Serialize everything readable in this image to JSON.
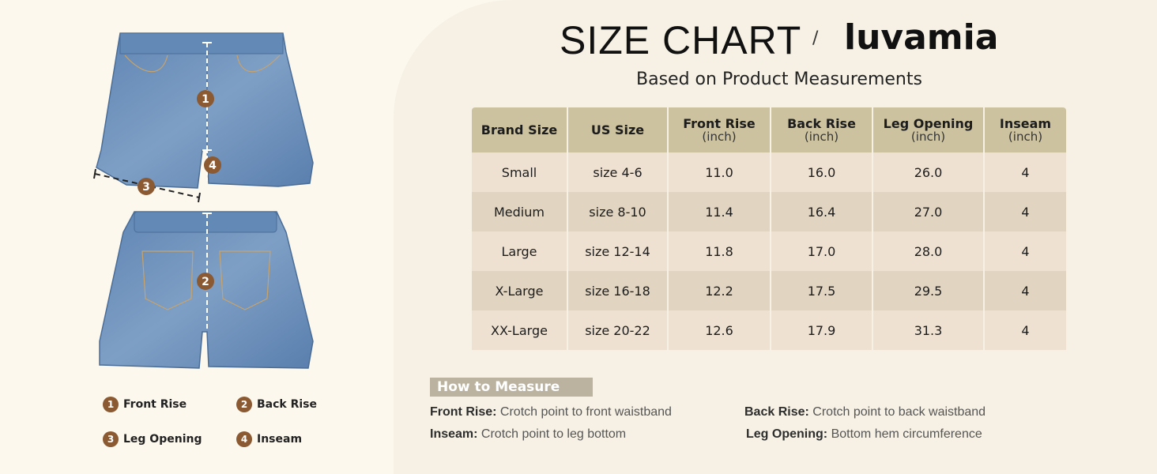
{
  "header": {
    "title": "SIZE CHART",
    "separator": "/",
    "brand": "luvamia",
    "subtitle": "Based on Product Measurements"
  },
  "table": {
    "columns": [
      {
        "label": "Brand Size",
        "unit": ""
      },
      {
        "label": "US Size",
        "unit": ""
      },
      {
        "label": "Front Rise",
        "unit": "(inch)"
      },
      {
        "label": "Back Rise",
        "unit": "(inch)"
      },
      {
        "label": "Leg Opening",
        "unit": "(inch)"
      },
      {
        "label": "Inseam",
        "unit": "(inch)"
      }
    ],
    "rows": [
      [
        "Small",
        "size 4-6",
        "11.0",
        "16.0",
        "26.0",
        "4"
      ],
      [
        "Medium",
        "size 8-10",
        "11.4",
        "16.4",
        "27.0",
        "4"
      ],
      [
        "Large",
        "size 12-14",
        "11.8",
        "17.0",
        "28.0",
        "4"
      ],
      [
        "X-Large",
        "size 16-18",
        "12.2",
        "17.5",
        "29.5",
        "4"
      ],
      [
        "XX-Large",
        "size 20-22",
        "12.6",
        "17.9",
        "31.3",
        "4"
      ]
    ]
  },
  "how_to_measure": {
    "title": "How to Measure",
    "items": [
      {
        "term": "Front Rise:",
        "desc": "Crotch point to front waistband"
      },
      {
        "term": "Back Rise:",
        "desc": "Crotch point to back waistband"
      },
      {
        "term": "Inseam:",
        "desc": "Crotch point to leg bottom"
      },
      {
        "term": "Leg Opening:",
        "desc": "Bottom hem circumference"
      }
    ]
  },
  "legend": [
    {
      "num": "1",
      "label": "Front Rise"
    },
    {
      "num": "2",
      "label": "Back Rise"
    },
    {
      "num": "3",
      "label": "Leg Opening"
    },
    {
      "num": "4",
      "label": "Inseam"
    }
  ],
  "diagram": {
    "markers": [
      "1",
      "2",
      "3",
      "4"
    ],
    "colors": {
      "denim": "#6b8fb8",
      "denim_dark": "#4f729c",
      "marker": "#8b5a32",
      "table_header": "#ccc29f"
    }
  }
}
